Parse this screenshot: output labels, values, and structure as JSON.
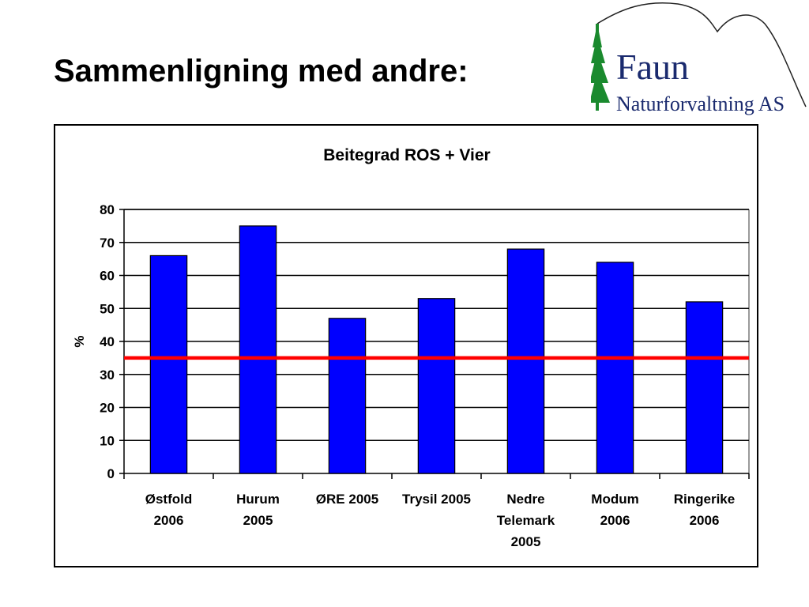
{
  "slide": {
    "title": "Sammenligning med andre:"
  },
  "logo": {
    "name": "Faun",
    "subtitle": "Naturforvaltning AS",
    "tree_color": "#1a8a2e",
    "text_color": "#1a2a6e"
  },
  "chart_data": {
    "type": "bar",
    "title": "Beitegrad ROS + Vier",
    "xlabel": "",
    "ylabel": "%",
    "categories": [
      [
        "Østfold",
        "2006"
      ],
      [
        "Hurum",
        "2005"
      ],
      [
        "ØRE 2005"
      ],
      [
        "Trysil 2005"
      ],
      [
        "Nedre",
        "Telemark",
        "2005"
      ],
      [
        "Modum",
        "2006"
      ],
      [
        "Ringerike",
        "2006"
      ]
    ],
    "series": [
      {
        "values": [
          66,
          75,
          47,
          53,
          68,
          64,
          52
        ],
        "color": "#0000ff"
      }
    ],
    "reference_line": {
      "value": 35,
      "color": "#ff0000"
    },
    "ylim": [
      0,
      80
    ],
    "yticks": [
      "0",
      "10",
      "20",
      "30",
      "40",
      "50",
      "60",
      "70",
      "80"
    ],
    "grid": true,
    "legend": "none"
  }
}
